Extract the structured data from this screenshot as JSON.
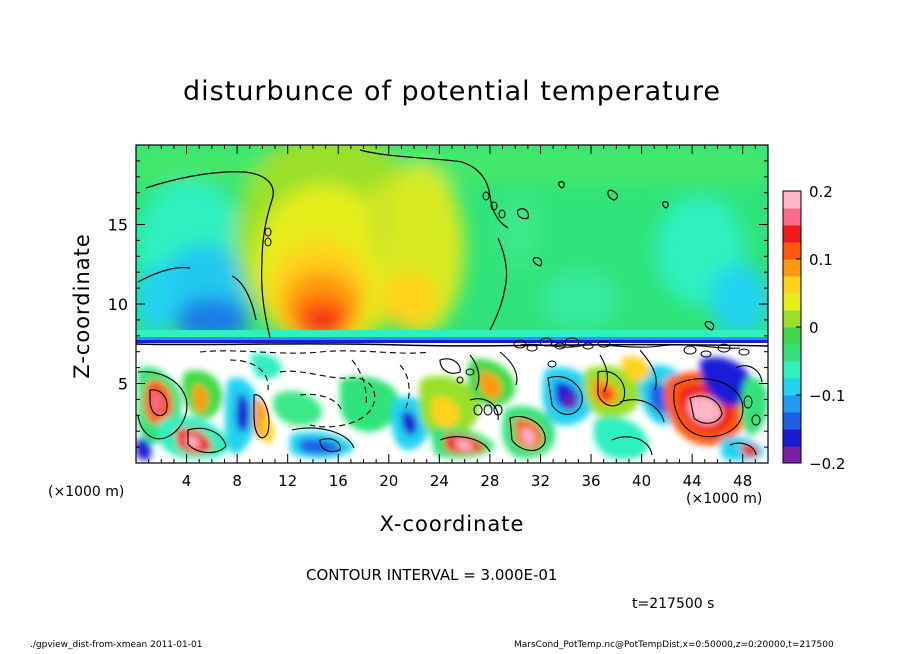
{
  "title": "disturbunce of potential temperature",
  "chart_data": {
    "type": "heatmap",
    "title": "disturbunce of potential temperature",
    "xlabel": "X-coordinate",
    "ylabel": "Z-coordinate",
    "x_unit_label": "(×1000 m)",
    "x_ticks": [
      4,
      8,
      12,
      16,
      20,
      24,
      28,
      32,
      36,
      40,
      44,
      48
    ],
    "y_ticks": [
      5,
      10,
      15
    ],
    "xlim": [
      0,
      50
    ],
    "ylim": [
      0,
      20
    ],
    "colorbar": {
      "min": -0.2,
      "max": 0.2,
      "ticks": [
        -0.2,
        -0.1,
        0,
        0.1,
        0.2
      ],
      "tick_labels": [
        "−0.2",
        "−0.1",
        "0",
        "0.1",
        "0.2"
      ],
      "colors": [
        "#7a1fa8",
        "#1b1bd6",
        "#1f5fe6",
        "#1f9cf2",
        "#24d3f0",
        "#2ff0c0",
        "#35e27a",
        "#3fd94a",
        "#9ae02a",
        "#e6ee1c",
        "#ffd21a",
        "#ff9a10",
        "#ff5a0c",
        "#f01818",
        "#ff6a8a",
        "#ffb6c6"
      ]
    },
    "contour_interval": "CONTOUR INTERVAL = 3.000E-01",
    "time_label": "t=217500 s"
  },
  "footer": {
    "left": "./gpview_dist-from-xmean  2011-01-01",
    "right": "MarsCond_PotTemp.nc@PotTempDist,x=0:50000,z=0:20000,t=217500"
  }
}
